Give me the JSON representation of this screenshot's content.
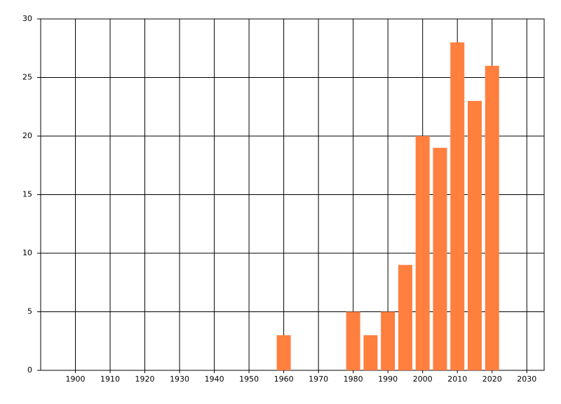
{
  "chart_data": {
    "type": "bar",
    "x": [
      1960,
      1980,
      1985,
      1990,
      1995,
      2000,
      2005,
      2010,
      2015,
      2020
    ],
    "values": [
      3,
      5,
      3,
      5,
      9,
      20,
      19,
      28,
      23,
      26
    ],
    "color": "#ff7f3f",
    "xlim": [
      1890,
      2035
    ],
    "xticks": [
      1900,
      1910,
      1920,
      1930,
      1940,
      1950,
      1960,
      1970,
      1980,
      1990,
      2000,
      2010,
      2020,
      2030
    ],
    "ylim": [
      0,
      30
    ],
    "yticks": [
      0,
      5,
      10,
      15,
      20,
      25,
      30
    ],
    "grid": true
  }
}
